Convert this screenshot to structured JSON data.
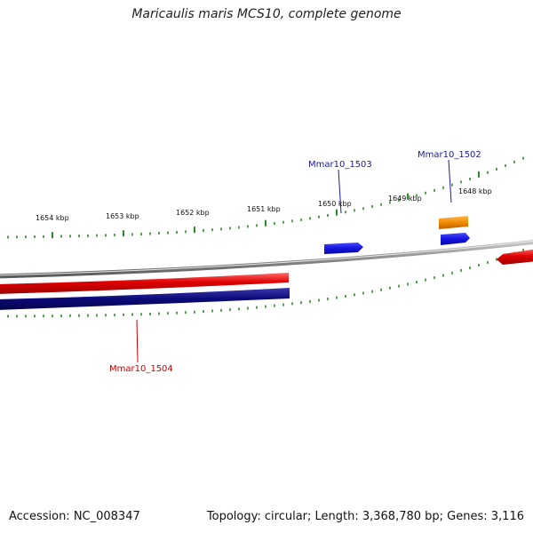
{
  "title": "Maricaulis maris MCS10, complete genome",
  "footer": {
    "accession": "Accession: NC_008347",
    "summary": "Topology: circular; Length: 3,368,780 bp; Genes: 3,116"
  },
  "colors": {
    "backbone": "#8c8c8c",
    "forward_cds": "#e00000",
    "reverse_cds": "#0a0a78",
    "gene_blue": "#1515e0",
    "gene_orange": "#f08a00",
    "tick": "#2a8c2a",
    "label_blue": "#1a1aa0",
    "label_red": "#cc0000"
  },
  "ruler": {
    "tick_labels": [
      "1654 kbp",
      "1653 kbp",
      "1652 kbp",
      "1651 kbp",
      "1650 kbp",
      "1649 kbp",
      "1648 kbp"
    ]
  },
  "genes": [
    {
      "label": "Mmar10_1503",
      "color": "gene_blue"
    },
    {
      "label": "Mmar10_1502",
      "color": "gene_blue"
    },
    {
      "label": "Mmar10_1504",
      "color": "label_red"
    }
  ]
}
